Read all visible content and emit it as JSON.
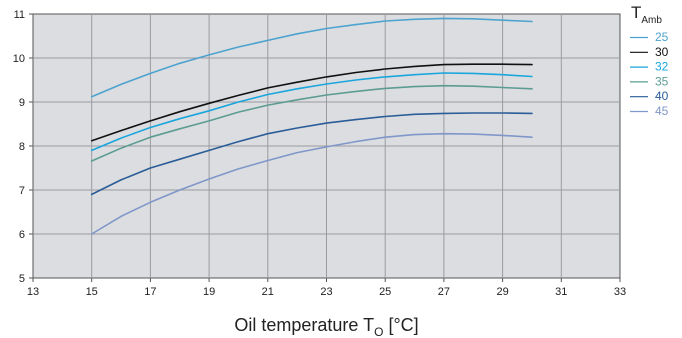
{
  "chart_data": {
    "type": "line",
    "xlabel": "Oil temperature T",
    "xlabel_sub": "O",
    "xlabel_unit": " [°C]",
    "legend_title": "T",
    "legend_title_sub": "Amb",
    "legend_position": "right",
    "grid": true,
    "background": "#dcdde0",
    "xlim": [
      13,
      33
    ],
    "ylim": [
      5,
      11
    ],
    "x_ticks": [
      "13",
      "15",
      "17",
      "19",
      "21",
      "23",
      "25",
      "27",
      "29",
      "31",
      "33"
    ],
    "y_ticks": [
      "5",
      "6",
      "7",
      "8",
      "9",
      "10",
      "11"
    ],
    "x": [
      15,
      16,
      17,
      18,
      19,
      20,
      21,
      22,
      23,
      24,
      25,
      26,
      27,
      28,
      29,
      30
    ],
    "series": [
      {
        "name": "25",
        "color": "#4da3cf",
        "values": [
          9.12,
          9.4,
          9.65,
          9.88,
          10.07,
          10.25,
          10.4,
          10.55,
          10.67,
          10.76,
          10.84,
          10.88,
          10.9,
          10.89,
          10.86,
          10.83
        ]
      },
      {
        "name": "30",
        "color": "#111111",
        "values": [
          8.12,
          8.35,
          8.57,
          8.78,
          8.97,
          9.15,
          9.32,
          9.45,
          9.57,
          9.67,
          9.75,
          9.81,
          9.85,
          9.86,
          9.86,
          9.85
        ]
      },
      {
        "name": "32",
        "color": "#19a6dd",
        "values": [
          7.9,
          8.18,
          8.42,
          8.62,
          8.8,
          9.0,
          9.17,
          9.3,
          9.41,
          9.5,
          9.57,
          9.62,
          9.66,
          9.65,
          9.62,
          9.58
        ]
      },
      {
        "name": "35",
        "color": "#5c9c93",
        "values": [
          7.66,
          7.95,
          8.2,
          8.39,
          8.57,
          8.77,
          8.93,
          9.05,
          9.16,
          9.24,
          9.31,
          9.35,
          9.37,
          9.36,
          9.33,
          9.3
        ]
      },
      {
        "name": "40",
        "color": "#2a5d98",
        "values": [
          6.9,
          7.23,
          7.5,
          7.7,
          7.9,
          8.1,
          8.28,
          8.41,
          8.52,
          8.6,
          8.67,
          8.72,
          8.74,
          8.75,
          8.75,
          8.74
        ]
      },
      {
        "name": "45",
        "color": "#7f97c9",
        "values": [
          6.0,
          6.4,
          6.72,
          7.0,
          7.25,
          7.48,
          7.67,
          7.85,
          7.98,
          8.1,
          8.2,
          8.26,
          8.28,
          8.27,
          8.24,
          8.2
        ]
      }
    ]
  }
}
